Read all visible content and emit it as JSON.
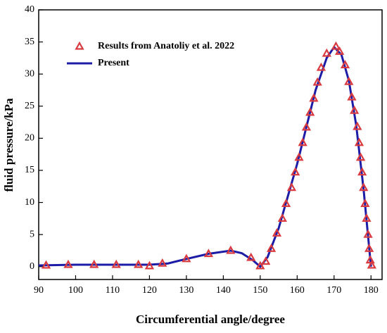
{
  "chart_data": {
    "type": "line",
    "xlabel": "Circumferential angle/degree",
    "ylabel": "fluid pressure/kPa",
    "xlim": [
      90,
      183
    ],
    "xticks": [
      90,
      100,
      110,
      120,
      130,
      140,
      150,
      160,
      170,
      180
    ],
    "ylim": [
      -2,
      40
    ],
    "yticks": [
      0,
      5,
      10,
      15,
      20,
      25,
      30,
      35,
      40
    ],
    "legend": "upper left",
    "series": [
      {
        "name": "Results from Anatoliy et al. 2022",
        "type": "scatter",
        "marker": "triangle",
        "color": "#d93a3f",
        "x": [
          92,
          98,
          105,
          111,
          117,
          120,
          123.5,
          130,
          136,
          142,
          147.5,
          150,
          151.5,
          153,
          154.5,
          156,
          157,
          158.5,
          159.5,
          160.5,
          161.5,
          162.5,
          163.5,
          164.5,
          165.5,
          166.5,
          168,
          170.5,
          171.5,
          173,
          174,
          174.8,
          175.5,
          176.3,
          176.8,
          177.2,
          177.6,
          178,
          178.4,
          178.8,
          179.2,
          179.5,
          179.8,
          180.2
        ],
        "values": [
          0.2,
          0.3,
          0.3,
          0.3,
          0.3,
          0.1,
          0.5,
          1.2,
          2,
          2.5,
          1.4,
          0.1,
          0.8,
          2.8,
          5.2,
          7.5,
          9.8,
          12.3,
          14.7,
          17,
          19.3,
          21.7,
          24,
          26.2,
          28.7,
          31,
          33.2,
          34.3,
          33.5,
          31.4,
          28.8,
          26.4,
          24.3,
          21.8,
          19.3,
          17,
          14.7,
          12.3,
          9.8,
          7.5,
          5,
          2.8,
          1,
          0.2
        ]
      },
      {
        "name": "Present",
        "type": "line",
        "color": "#1c1ca6",
        "x": [
          90,
          100,
          120,
          125,
          130,
          136,
          142,
          145,
          148,
          150,
          152,
          155,
          160,
          165,
          168,
          170,
          172,
          174,
          176,
          178,
          179,
          180
        ],
        "values": [
          0.2,
          0.3,
          0.3,
          0.5,
          1.2,
          2,
          2.5,
          2.1,
          1,
          0,
          1.5,
          6,
          16,
          27.5,
          32.5,
          34.2,
          33,
          29,
          22,
          12,
          6,
          0
        ]
      }
    ]
  }
}
